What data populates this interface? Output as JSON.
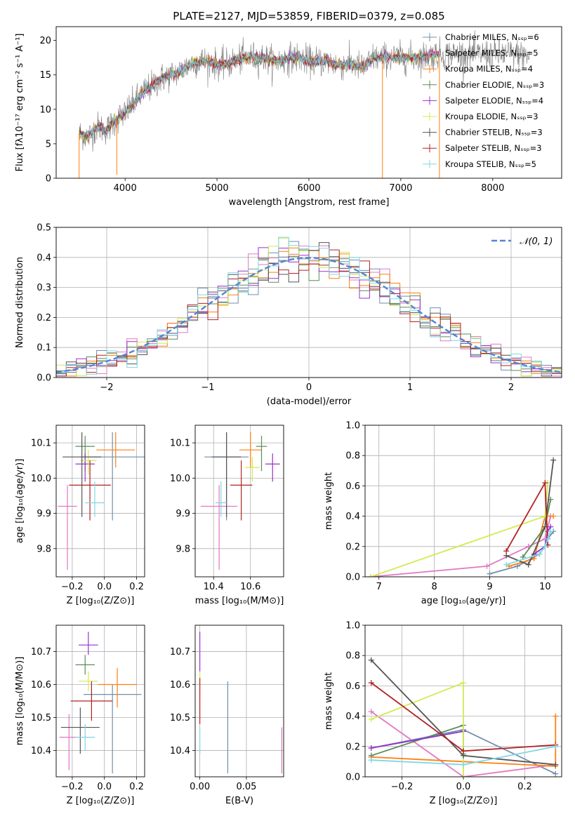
{
  "figure_title": "PLATE=2127, MJD=53859, FIBERID=0379, z=0.085",
  "colors": {
    "chabrier_miles": "#6f8faf",
    "salpeter_miles": "#e377c2",
    "kroupa_miles": "#ff7f0e",
    "chabrier_elodie": "#5b8c5a",
    "salpeter_elodie": "#9932cc",
    "kroupa_elodie": "#d4ea4f",
    "chabrier_stelib": "#555555",
    "salpeter_stelib": "#b22222",
    "kroupa_stelib": "#7fd6e6",
    "normal_curve": "#4f86d6",
    "grid": "#b0b0b0"
  },
  "chart_data": [
    {
      "id": "spectrum",
      "type": "line",
      "title": "PLATE=2127, MJD=53859, FIBERID=0379, z=0.085",
      "xlabel": "wavelength [Angstrom, rest frame]",
      "ylabel": "Flux [fλ10⁻¹⁷ erg cm⁻² s⁻¹ A⁻¹]",
      "xlim": [
        3250,
        8750
      ],
      "ylim": [
        0,
        22
      ],
      "xticks": [
        4000,
        5000,
        6000,
        7000,
        8000
      ],
      "yticks": [
        0,
        5,
        10,
        15,
        20
      ],
      "grid": false,
      "legend_position": "right",
      "legend": [
        {
          "label": "Chabrier MILES, Nₛₛₚ=6",
          "color": "#6f8faf"
        },
        {
          "label": "Salpeter MILES, Nₛₛₚ=5",
          "color": "#e377c2"
        },
        {
          "label": "Kroupa MILES, Nₛₛₚ=4",
          "color": "#ff7f0e"
        },
        {
          "label": "Chabrier ELODIE, Nₛₛₚ=3",
          "color": "#5b8c5a"
        },
        {
          "label": "Salpeter ELODIE, Nₛₛₚ=4",
          "color": "#9932cc"
        },
        {
          "label": "Kroupa ELODIE, Nₛₛₚ=3",
          "color": "#d4ea4f"
        },
        {
          "label": "Chabrier STELIB, Nₛₛₚ=3",
          "color": "#555555"
        },
        {
          "label": "Salpeter STELIB, Nₛₛₚ=3",
          "color": "#b22222"
        },
        {
          "label": "Kroupa STELIB, Nₛₛₚ=5",
          "color": "#7fd6e6"
        }
      ],
      "data_trend": {
        "x": [
          3500,
          3600,
          3700,
          3800,
          3900,
          4000,
          4100,
          4200,
          4300,
          4400,
          4500,
          4600,
          4700,
          4800,
          4900,
          5000,
          5100,
          5200,
          5300,
          5400,
          5500,
          5600,
          5700,
          5800,
          5900,
          6000,
          6100,
          6200,
          6300,
          6400,
          6500,
          6600,
          6700,
          6800,
          6900,
          7000,
          7100,
          7200,
          7300,
          7400,
          7500,
          7600,
          7700,
          7800,
          7900,
          8000,
          8100,
          8200,
          8300,
          8400
        ],
        "y": [
          6.5,
          6.0,
          7.5,
          7.0,
          8.5,
          9.5,
          11.0,
          12.5,
          13.5,
          14.5,
          15.0,
          15.5,
          16.5,
          17.0,
          17.0,
          16.5,
          16.5,
          17.0,
          17.5,
          17.5,
          17.5,
          17.0,
          17.0,
          17.5,
          17.5,
          17.0,
          17.0,
          17.0,
          16.5,
          16.5,
          16.5,
          16.0,
          17.5,
          17.5,
          17.5,
          17.5,
          17.5,
          17.5,
          17.8,
          18.0,
          18.0,
          18.0,
          18.0,
          18.0,
          18.0,
          18.0,
          18.0,
          18.0,
          18.0,
          17.5
        ]
      },
      "model_extent": {
        "x_start": 3500,
        "x_end": 7420
      },
      "model_dips": [
        {
          "x": 3910,
          "y": 0.5
        },
        {
          "x": 6800,
          "y": 0.0
        },
        {
          "x": 7420,
          "y": 0.0
        }
      ]
    },
    {
      "id": "residuals",
      "type": "line",
      "xlabel": "(data-model)/error",
      "ylabel": "Normed distribution",
      "xlim": [
        -2.5,
        2.5
      ],
      "ylim": [
        0,
        0.5
      ],
      "xticks": [
        -2,
        -1,
        0,
        1,
        2
      ],
      "xtick_labels": [
        "−2",
        "−1",
        "0",
        "1",
        "2"
      ],
      "yticks": [
        0.0,
        0.1,
        0.2,
        0.3,
        0.4,
        0.5
      ],
      "grid": true,
      "legend_position": "top-right",
      "legend": [
        {
          "label": "𝒩(0, 1)",
          "color": "#4f86d6",
          "style": "dashed"
        }
      ],
      "bin_edges_range": [
        -2.5,
        2.5
      ],
      "n_bins": 50,
      "curve": "standard normal pdf"
    },
    {
      "id": "age_vs_Z",
      "type": "scatter",
      "xlabel": "Z [log₁₀(Z/Z⊙)]",
      "ylabel": "age  [log₁₀(age/yr)]",
      "xlim": [
        -0.3,
        0.25
      ],
      "ylim": [
        9.72,
        10.15
      ],
      "xticks": [
        -0.2,
        0.0,
        0.2
      ],
      "xtick_labels": [
        "−0.2",
        "0.0",
        "0.2"
      ],
      "yticks": [
        9.8,
        9.9,
        10.0,
        10.1
      ],
      "grid": true,
      "points": [
        {
          "model": "chabrier_miles",
          "x": 0.05,
          "y": 10.06,
          "xerr": [
            0.2,
            0.2
          ],
          "yerr": [
            0.18,
            0.07
          ]
        },
        {
          "model": "salpeter_miles",
          "x": -0.23,
          "y": 9.92,
          "xerr": [
            0.06,
            0.06
          ],
          "yerr": [
            0.18,
            0.06
          ]
        },
        {
          "model": "kroupa_miles",
          "x": 0.07,
          "y": 10.08,
          "xerr": [
            0.12,
            0.12
          ],
          "yerr": [
            0.05,
            0.05
          ]
        },
        {
          "model": "chabrier_elodie",
          "x": -0.12,
          "y": 10.09,
          "xerr": [
            0.06,
            0.06
          ],
          "yerr": [
            0.07,
            0.03
          ]
        },
        {
          "model": "salpeter_elodie",
          "x": -0.12,
          "y": 10.04,
          "xerr": [
            0.06,
            0.06
          ],
          "yerr": [
            0.05,
            0.03
          ]
        },
        {
          "model": "kroupa_elodie",
          "x": -0.1,
          "y": 10.05,
          "xerr": [
            0.05,
            0.05
          ],
          "yerr": [
            0.04,
            0.03
          ]
        },
        {
          "model": "chabrier_stelib",
          "x": -0.14,
          "y": 10.06,
          "xerr": [
            0.12,
            0.12
          ],
          "yerr": [
            0.17,
            0.07
          ]
        },
        {
          "model": "salpeter_stelib",
          "x": -0.09,
          "y": 9.98,
          "xerr": [
            0.13,
            0.13
          ],
          "yerr": [
            0.1,
            0.07
          ]
        },
        {
          "model": "kroupa_stelib",
          "x": -0.06,
          "y": 9.93,
          "xerr": [
            0.06,
            0.06
          ],
          "yerr": [
            0.04,
            0.06
          ]
        }
      ]
    },
    {
      "id": "age_vs_mass",
      "type": "scatter",
      "xlabel": "mass [log₁₀(M/M⊙)]",
      "ylabel": "",
      "xlim": [
        10.3,
        10.78
      ],
      "ylim": [
        9.72,
        10.15
      ],
      "xticks": [
        10.4,
        10.6
      ],
      "xtick_labels": [
        "10.4",
        "10.6"
      ],
      "yticks": [
        9.8,
        9.9,
        10.0,
        10.1
      ],
      "grid": true,
      "points": [
        {
          "model": "chabrier_miles",
          "x": 10.47,
          "y": 10.06,
          "xerr": [
            0.12,
            0.12
          ],
          "yerr": [
            0.18,
            0.07
          ]
        },
        {
          "model": "salpeter_miles",
          "x": 10.43,
          "y": 9.92,
          "xerr": [
            0.1,
            0.1
          ],
          "yerr": [
            0.18,
            0.06
          ]
        },
        {
          "model": "kroupa_miles",
          "x": 10.6,
          "y": 10.08,
          "xerr": [
            0.06,
            0.06
          ],
          "yerr": [
            0.05,
            0.05
          ]
        },
        {
          "model": "chabrier_elodie",
          "x": 10.66,
          "y": 10.09,
          "xerr": [
            0.03,
            0.03
          ],
          "yerr": [
            0.07,
            0.03
          ]
        },
        {
          "model": "salpeter_elodie",
          "x": 10.72,
          "y": 10.04,
          "xerr": [
            0.04,
            0.04
          ],
          "yerr": [
            0.05,
            0.03
          ]
        },
        {
          "model": "kroupa_elodie",
          "x": 10.61,
          "y": 10.03,
          "xerr": [
            0.04,
            0.04
          ],
          "yerr": [
            0.04,
            0.03
          ]
        },
        {
          "model": "chabrier_stelib",
          "x": 10.47,
          "y": 10.06,
          "xerr": [
            0.08,
            0.08
          ],
          "yerr": [
            0.17,
            0.07
          ]
        },
        {
          "model": "salpeter_stelib",
          "x": 10.55,
          "y": 9.98,
          "xerr": [
            0.06,
            0.06
          ],
          "yerr": [
            0.1,
            0.07
          ]
        },
        {
          "model": "kroupa_stelib",
          "x": 10.44,
          "y": 9.93,
          "xerr": [
            0.03,
            0.03
          ],
          "yerr": [
            0.04,
            0.06
          ]
        }
      ]
    },
    {
      "id": "massweight_vs_age",
      "type": "line",
      "xlabel": "age  [log₁₀(age/yr)]",
      "ylabel": "mass weight",
      "xlim": [
        6.75,
        10.3
      ],
      "ylim": [
        0,
        1.0
      ],
      "xticks": [
        7,
        8,
        9,
        10
      ],
      "xtick_labels": [
        "7",
        "8",
        "9",
        "10"
      ],
      "yticks": [
        0.0,
        0.2,
        0.4,
        0.6,
        0.8,
        1.0
      ],
      "grid": true,
      "series": [
        {
          "model": "chabrier_miles",
          "x": [
            9.0,
            9.5,
            9.9,
            10.0,
            10.05,
            10.15
          ],
          "y": [
            0.02,
            0.07,
            0.15,
            0.2,
            0.25,
            0.3
          ]
        },
        {
          "model": "salpeter_miles",
          "x": [
            6.85,
            8.95,
            9.7,
            10.0,
            10.1
          ],
          "y": [
            0.0,
            0.07,
            0.2,
            0.25,
            0.4
          ]
        },
        {
          "model": "kroupa_miles",
          "x": [
            9.35,
            9.8,
            10.0,
            10.15
          ],
          "y": [
            0.07,
            0.12,
            0.4,
            0.4
          ]
        },
        {
          "model": "chabrier_elodie",
          "x": [
            9.6,
            10.0,
            10.1
          ],
          "y": [
            0.13,
            0.33,
            0.51
          ]
        },
        {
          "model": "salpeter_elodie",
          "x": [
            9.8,
            10.0,
            10.05,
            10.1
          ],
          "y": [
            0.15,
            0.2,
            0.3,
            0.33
          ]
        },
        {
          "model": "kroupa_elodie",
          "x": [
            6.85,
            10.0,
            10.05
          ],
          "y": [
            0.0,
            0.4,
            0.62
          ]
        },
        {
          "model": "chabrier_stelib",
          "x": [
            9.3,
            9.7,
            10.0,
            10.15
          ],
          "y": [
            0.14,
            0.08,
            0.33,
            0.77
          ]
        },
        {
          "model": "salpeter_stelib",
          "x": [
            9.3,
            10.0,
            10.05
          ],
          "y": [
            0.17,
            0.62,
            0.21
          ]
        },
        {
          "model": "kroupa_stelib",
          "x": [
            9.3,
            9.9,
            10.0,
            10.05,
            10.1
          ],
          "y": [
            0.08,
            0.15,
            0.2,
            0.25,
            0.3
          ]
        }
      ]
    },
    {
      "id": "mass_vs_Z",
      "type": "scatter",
      "xlabel": "Z [log₁₀(Z/Z⊙)]",
      "ylabel": "mass [log₁₀(M/M⊙)]",
      "xlim": [
        -0.3,
        0.25
      ],
      "ylim": [
        10.32,
        10.78
      ],
      "xticks": [
        -0.2,
        0.0,
        0.2
      ],
      "xtick_labels": [
        "−0.2",
        "0.0",
        "0.2"
      ],
      "yticks": [
        10.4,
        10.5,
        10.6,
        10.7
      ],
      "grid": true,
      "points": [
        {
          "model": "chabrier_miles",
          "x": 0.05,
          "y": 10.57,
          "xerr": [
            0.18,
            0.18
          ],
          "yerr": [
            0.24,
            0.03
          ]
        },
        {
          "model": "salpeter_miles",
          "x": -0.22,
          "y": 10.44,
          "xerr": [
            0.06,
            0.06
          ],
          "yerr": [
            0.1,
            0.07
          ]
        },
        {
          "model": "kroupa_miles",
          "x": 0.08,
          "y": 10.6,
          "xerr": [
            0.12,
            0.12
          ],
          "yerr": [
            0.07,
            0.05
          ]
        },
        {
          "model": "chabrier_elodie",
          "x": -0.12,
          "y": 10.66,
          "xerr": [
            0.06,
            0.06
          ],
          "yerr": [
            0.03,
            0.03
          ]
        },
        {
          "model": "salpeter_elodie",
          "x": -0.1,
          "y": 10.72,
          "xerr": [
            0.06,
            0.06
          ],
          "yerr": [
            0.03,
            0.04
          ]
        },
        {
          "model": "kroupa_elodie",
          "x": -0.1,
          "y": 10.61,
          "xerr": [
            0.06,
            0.06
          ],
          "yerr": [
            0.03,
            0.03
          ]
        },
        {
          "model": "chabrier_stelib",
          "x": -0.15,
          "y": 10.47,
          "xerr": [
            0.12,
            0.12
          ],
          "yerr": [
            0.08,
            0.06
          ]
        },
        {
          "model": "salpeter_stelib",
          "x": -0.08,
          "y": 10.55,
          "xerr": [
            0.13,
            0.13
          ],
          "yerr": [
            0.06,
            0.06
          ]
        },
        {
          "model": "kroupa_stelib",
          "x": -0.12,
          "y": 10.44,
          "xerr": [
            0.06,
            0.06
          ],
          "yerr": [
            0.04,
            0.04
          ]
        }
      ]
    },
    {
      "id": "mass_vs_ebv",
      "type": "scatter",
      "xlabel": "E(B-V)",
      "ylabel": "",
      "xlim": [
        -0.005,
        0.09
      ],
      "ylim": [
        10.32,
        10.78
      ],
      "xticks": [
        0.0,
        0.05
      ],
      "xtick_labels": [
        "0.00",
        "0.05"
      ],
      "yticks": [
        10.4,
        10.5,
        10.6,
        10.7
      ],
      "grid": true,
      "points": [
        {
          "model": "chabrier_miles",
          "x": 0.03,
          "y": 10.47,
          "xerr": [
            0,
            0
          ],
          "yerr": [
            0.14,
            0.14
          ]
        },
        {
          "model": "salpeter_miles",
          "x": 0.088,
          "y": 10.4,
          "xerr": [
            0,
            0
          ],
          "yerr": [
            0.07,
            0.07
          ]
        },
        {
          "model": "salpeter_elodie",
          "x": 0.0,
          "y": 10.7,
          "xerr": [
            0,
            0
          ],
          "yerr": [
            0.06,
            0.06
          ]
        },
        {
          "model": "kroupa_elodie",
          "x": 0.0,
          "y": 10.61,
          "xerr": [
            0,
            0
          ],
          "yerr": [
            0.03,
            0.03
          ]
        },
        {
          "model": "salpeter_stelib",
          "x": 0.0,
          "y": 10.55,
          "xerr": [
            0,
            0
          ],
          "yerr": [
            0.07,
            0.07
          ]
        },
        {
          "model": "kroupa_stelib",
          "x": 0.0,
          "y": 10.43,
          "xerr": [
            0,
            0
          ],
          "yerr": [
            0.04,
            0.04
          ]
        }
      ]
    },
    {
      "id": "massweight_vs_Z",
      "type": "line",
      "xlabel": "Z [log₁₀(Z/Z⊙)]",
      "ylabel": "mass weight",
      "xlim": [
        -0.32,
        0.32
      ],
      "ylim": [
        0,
        1.0
      ],
      "xticks": [
        -0.2,
        0.0,
        0.2
      ],
      "xtick_labels": [
        "−0.2",
        "0.0",
        "0.2"
      ],
      "yticks": [
        0.0,
        0.2,
        0.4,
        0.6,
        0.8,
        1.0
      ],
      "grid": true,
      "series": [
        {
          "model": "chabrier_miles",
          "x": [
            -0.3,
            0.0,
            0.3
          ],
          "y": [
            0.19,
            0.31,
            0.02
          ]
        },
        {
          "model": "salpeter_miles",
          "x": [
            -0.3,
            0.0,
            0.3
          ],
          "y": [
            0.43,
            0.0,
            0.08
          ]
        },
        {
          "model": "kroupa_miles",
          "x": [
            -0.3,
            0.0,
            0.3,
            0.3
          ],
          "y": [
            0.13,
            0.1,
            0.07,
            0.4
          ]
        },
        {
          "model": "chabrier_elodie",
          "x": [
            -0.3,
            0.0,
            0.0
          ],
          "y": [
            0.14,
            0.34,
            0.15
          ]
        },
        {
          "model": "salpeter_elodie",
          "x": [
            -0.3,
            0.0
          ],
          "y": [
            0.19,
            0.3
          ]
        },
        {
          "model": "kroupa_elodie",
          "x": [
            -0.3,
            0.0,
            0.0
          ],
          "y": [
            0.38,
            0.62,
            0.0
          ]
        },
        {
          "model": "chabrier_stelib",
          "x": [
            -0.3,
            0.0,
            0.3
          ],
          "y": [
            0.77,
            0.14,
            0.08
          ]
        },
        {
          "model": "salpeter_stelib",
          "x": [
            -0.3,
            0.0,
            0.3
          ],
          "y": [
            0.62,
            0.17,
            0.21
          ]
        },
        {
          "model": "kroupa_stelib",
          "x": [
            -0.3,
            0.0,
            0.3
          ],
          "y": [
            0.11,
            0.08,
            0.2
          ]
        }
      ]
    }
  ]
}
